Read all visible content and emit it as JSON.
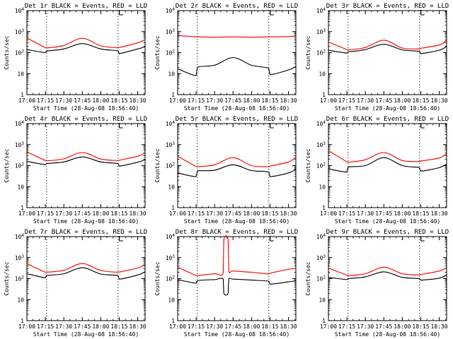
{
  "figure": {
    "ylabel": "Counts/sec",
    "xlabel": "Start Time (28-Aug-08 18:56:40)",
    "x_tick_labels": [
      "17:00",
      "17:15",
      "17:30",
      "17:45",
      "18:00",
      "18:15",
      "18:30"
    ],
    "x_ticks_min": [
      1020,
      1035,
      1050,
      1065,
      1080,
      1095,
      1110
    ],
    "xlim_min": [
      1020,
      1116
    ],
    "vlines_min": [
      1036,
      1094
    ],
    "ylim": [
      1,
      10000
    ],
    "y_scale": "log",
    "y_tick_values": [
      1,
      10,
      100,
      1000,
      10000
    ],
    "y_tick_bases": [
      "1",
      "10",
      "10",
      "10",
      "10"
    ],
    "y_tick_exps": [
      "",
      "",
      "2",
      "3",
      "4"
    ],
    "colors": {
      "events": "#000000",
      "lld": "#ff0000",
      "markers": "#000000"
    }
  },
  "panels": [
    {
      "title": "Det 1r BLACK = Events, RED = LLD"
    },
    {
      "title": "Det 2r BLACK = Events, RED = LLD"
    },
    {
      "title": "Det 3r BLACK = Events, RED = LLD"
    },
    {
      "title": "Det 4r BLACK = Events, RED = LLD"
    },
    {
      "title": "Det 5r BLACK = Events, RED = LLD"
    },
    {
      "title": "Det 6r BLACK = Events, RED = LLD"
    },
    {
      "title": "Det 7r BLACK = Events, RED = LLD"
    },
    {
      "title": "Det 8r BLACK = Events, RED = LLD"
    },
    {
      "title": "Det 9r BLACK = Events, RED = LLD"
    }
  ],
  "chart_data": [
    {
      "type": "line",
      "title": "Det 1r BLACK = Events, RED = LLD",
      "xlabel": "Start Time (28-Aug-08 18:56:40)",
      "ylabel": "Counts/sec",
      "y_scale": "log",
      "ylim": [
        1,
        10000
      ],
      "x": [
        1020,
        1035,
        1036,
        1050,
        1065,
        1080,
        1094,
        1095,
        1110,
        1116
      ],
      "series": [
        {
          "color": "#ff0000",
          "values": [
            500,
            170,
            165,
            220,
            480,
            210,
            170,
            175,
            290,
            420
          ]
        },
        {
          "color": "#000000",
          "values": [
            140,
            100,
            118,
            150,
            270,
            150,
            120,
            90,
            150,
            190
          ]
        }
      ]
    },
    {
      "type": "line",
      "title": "Det 2r BLACK = Events, RED = LLD",
      "xlabel": "Start Time (28-Aug-08 18:56:40)",
      "ylabel": "Counts/sec",
      "y_scale": "log",
      "ylim": [
        1,
        10000
      ],
      "x": [
        1020,
        1035,
        1036,
        1050,
        1065,
        1080,
        1094,
        1095,
        1110,
        1116
      ],
      "series": [
        {
          "color": "#ff0000",
          "values": [
            650,
            560,
            560,
            540,
            560,
            540,
            560,
            560,
            580,
            620
          ]
        },
        {
          "color": "#000000",
          "values": [
            17,
            8,
            20,
            25,
            58,
            25,
            18,
            9,
            15,
            22
          ]
        }
      ]
    },
    {
      "type": "line",
      "title": "Det 3r BLACK = Events, RED = LLD",
      "xlabel": "Start Time (28-Aug-08 18:56:40)",
      "ylabel": "Counts/sec",
      "y_scale": "log",
      "ylim": [
        1,
        10000
      ],
      "x": [
        1020,
        1035,
        1036,
        1050,
        1065,
        1080,
        1094,
        1095,
        1110,
        1116
      ],
      "series": [
        {
          "color": "#ff0000",
          "values": [
            320,
            140,
            135,
            175,
            390,
            165,
            150,
            160,
            230,
            380
          ]
        },
        {
          "color": "#000000",
          "values": [
            130,
            95,
            108,
            140,
            250,
            135,
            115,
            90,
            130,
            200
          ]
        }
      ]
    },
    {
      "type": "line",
      "title": "Det 4r BLACK = Events, RED = LLD",
      "xlabel": "Start Time (28-Aug-08 18:56:40)",
      "ylabel": "Counts/sec",
      "y_scale": "log",
      "ylim": [
        1,
        10000
      ],
      "x": [
        1020,
        1035,
        1036,
        1050,
        1065,
        1080,
        1094,
        1095,
        1110,
        1116
      ],
      "series": [
        {
          "color": "#ff0000",
          "values": [
            450,
            175,
            170,
            210,
            420,
            205,
            175,
            180,
            280,
            390
          ]
        },
        {
          "color": "#000000",
          "values": [
            160,
            110,
            125,
            150,
            260,
            150,
            125,
            95,
            145,
            190
          ]
        }
      ]
    },
    {
      "type": "line",
      "title": "Det 5r BLACK = Events, RED = LLD",
      "xlabel": "Start Time (28-Aug-08 18:56:40)",
      "ylabel": "Counts/sec",
      "y_scale": "log",
      "ylim": [
        1,
        10000
      ],
      "x": [
        1020,
        1035,
        1036,
        1050,
        1065,
        1080,
        1094,
        1095,
        1110,
        1116
      ],
      "series": [
        {
          "color": "#ff0000",
          "values": [
            280,
            90,
            88,
            110,
            240,
            100,
            90,
            95,
            150,
            260
          ]
        },
        {
          "color": "#000000",
          "values": [
            45,
            30,
            55,
            60,
            110,
            58,
            50,
            30,
            45,
            70
          ]
        }
      ]
    },
    {
      "type": "line",
      "title": "Det 6r BLACK = Events, RED = LLD",
      "xlabel": "Start Time (28-Aug-08 18:56:40)",
      "ylabel": "Counts/sec",
      "y_scale": "log",
      "ylim": [
        1,
        10000
      ],
      "x": [
        1020,
        1035,
        1036,
        1050,
        1065,
        1080,
        1094,
        1095,
        1110,
        1116
      ],
      "series": [
        {
          "color": "#ff0000",
          "values": [
            520,
            150,
            145,
            190,
            420,
            175,
            155,
            165,
            230,
            380
          ]
        },
        {
          "color": "#000000",
          "values": [
            70,
            50,
            85,
            100,
            240,
            100,
            80,
            55,
            80,
            120
          ]
        }
      ]
    },
    {
      "type": "line",
      "title": "Det 7r BLACK = Events, RED = LLD",
      "xlabel": "Start Time (28-Aug-08 18:56:40)",
      "ylabel": "Counts/sec",
      "y_scale": "log",
      "ylim": [
        1,
        10000
      ],
      "x": [
        1020,
        1035,
        1036,
        1050,
        1065,
        1080,
        1094,
        1095,
        1110,
        1116
      ],
      "series": [
        {
          "color": "#ff0000",
          "values": [
            520,
            200,
            200,
            250,
            520,
            245,
            200,
            205,
            320,
            480
          ]
        },
        {
          "color": "#000000",
          "values": [
            170,
            110,
            140,
            170,
            330,
            165,
            140,
            95,
            150,
            210
          ]
        }
      ]
    },
    {
      "type": "line",
      "title": "Det 8r BLACK = Events, RED = LLD",
      "xlabel": "Start Time (28-Aug-08 18:56:40)",
      "ylabel": "Counts/sec",
      "y_scale": "log",
      "ylim": [
        1,
        10000
      ],
      "x": [
        1020,
        1035,
        1036,
        1050,
        1057,
        1057.5,
        1061,
        1061.5,
        1065,
        1080,
        1094,
        1095,
        1110,
        1116
      ],
      "series": [
        {
          "color": "#ff0000",
          "values": [
            350,
            140,
            140,
            170,
            190,
            7000,
            7000,
            240,
            230,
            200,
            165,
            180,
            280,
            300
          ]
        },
        {
          "color": "#000000",
          "values": [
            90,
            60,
            80,
            90,
            95,
            20,
            20,
            95,
            95,
            85,
            75,
            55,
            70,
            80
          ]
        }
      ]
    },
    {
      "type": "line",
      "title": "Det 9r BLACK = Events, RED = LLD",
      "xlabel": "Start Time (28-Aug-08 18:56:40)",
      "ylabel": "Counts/sec",
      "y_scale": "log",
      "ylim": [
        1,
        10000
      ],
      "x": [
        1020,
        1035,
        1036,
        1050,
        1065,
        1080,
        1094,
        1095,
        1110,
        1116
      ],
      "series": [
        {
          "color": "#ff0000",
          "values": [
            320,
            145,
            140,
            170,
            350,
            170,
            150,
            155,
            230,
            330
          ]
        },
        {
          "color": "#000000",
          "values": [
            115,
            90,
            100,
            120,
            210,
            115,
            100,
            85,
            105,
            150
          ]
        }
      ]
    }
  ]
}
